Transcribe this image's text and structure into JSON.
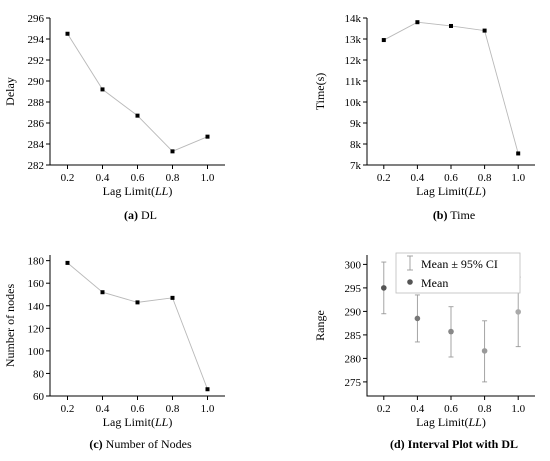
{
  "chart_data": [
    {
      "id": "a",
      "type": "line",
      "caption_bold": "(a)",
      "caption_text": " DL",
      "x": [
        0.2,
        0.4,
        0.6,
        0.8,
        1.0
      ],
      "xticks": [
        "0.2",
        "0.4",
        "0.6",
        "0.8",
        "1.0"
      ],
      "xlabel_prefix": "Lag Limit(",
      "xlabel_italic": "LL",
      "xlabel_suffix": ")",
      "ylabel": "Delay",
      "xlim": [
        0.1,
        1.1
      ],
      "ylim": [
        282,
        296
      ],
      "yticks": [
        282,
        284,
        286,
        288,
        290,
        292,
        294,
        296
      ],
      "ytick_labels": [
        "282",
        "284",
        "286",
        "288",
        "290",
        "292",
        "294",
        "296"
      ],
      "series": [
        {
          "values": [
            294.5,
            289.2,
            286.7,
            283.3,
            284.7
          ]
        }
      ]
    },
    {
      "id": "b",
      "type": "line",
      "caption_bold": "(b)",
      "caption_text": " Time",
      "x": [
        0.2,
        0.4,
        0.6,
        0.8,
        1.0
      ],
      "xticks": [
        "0.2",
        "0.4",
        "0.6",
        "0.8",
        "1.0"
      ],
      "xlabel_prefix": "Lag Limit(",
      "xlabel_italic": "LL",
      "xlabel_suffix": ")",
      "ylabel": "Time(s)",
      "xlim": [
        0.1,
        1.1
      ],
      "ylim": [
        7000,
        14000
      ],
      "yticks": [
        7000,
        8000,
        9000,
        10000,
        11000,
        12000,
        13000,
        14000
      ],
      "ytick_labels": [
        "7k",
        "8k",
        "9k",
        "10k",
        "11k",
        "12k",
        "13k",
        "14k"
      ],
      "series": [
        {
          "values": [
            12950,
            13800,
            13620,
            13400,
            7550
          ]
        }
      ]
    },
    {
      "id": "c",
      "type": "line",
      "caption_bold": "(c)",
      "caption_text": " Number of Nodes",
      "x": [
        0.2,
        0.4,
        0.6,
        0.8,
        1.0
      ],
      "xticks": [
        "0.2",
        "0.4",
        "0.6",
        "0.8",
        "1.0"
      ],
      "xlabel_prefix": "Lag Limit(",
      "xlabel_italic": "LL",
      "xlabel_suffix": ")",
      "ylabel": "Number of nodes",
      "xlim": [
        0.1,
        1.1
      ],
      "ylim": [
        60,
        185
      ],
      "yticks": [
        60,
        80,
        100,
        120,
        140,
        160,
        180
      ],
      "ytick_labels": [
        "60",
        "80",
        "100",
        "120",
        "140",
        "160",
        "180"
      ],
      "series": [
        {
          "values": [
            178,
            152,
            143,
            147,
            66
          ]
        }
      ]
    },
    {
      "id": "d",
      "type": "scatter",
      "caption_bold": "(d) Interval Plot with DL",
      "caption_text": "",
      "x": [
        0.2,
        0.4,
        0.6,
        0.8,
        1.0
      ],
      "xticks": [
        "0.2",
        "0.4",
        "0.6",
        "0.8",
        "1.0"
      ],
      "xlabel_prefix": "Lag Limit(",
      "xlabel_italic": "LL",
      "xlabel_suffix": ")",
      "ylabel": "Range",
      "xlim": [
        0.1,
        1.1
      ],
      "ylim": [
        272,
        302
      ],
      "yticks": [
        275,
        280,
        285,
        290,
        295,
        300
      ],
      "ytick_labels": [
        "275",
        "280",
        "285",
        "290",
        "295",
        "300"
      ],
      "legend": {
        "ci_label": "Mean ± 95% CI",
        "mean_label": "Mean",
        "placement": "top-right"
      },
      "series": [
        {
          "values": [
            295.0,
            288.5,
            285.7,
            281.6,
            289.9
          ],
          "ci_low": [
            289.5,
            283.5,
            280.3,
            275.0,
            282.5
          ],
          "ci_high": [
            300.5,
            293.5,
            291.0,
            288.0,
            297.3
          ],
          "colors": [
            "#555555",
            "#777777",
            "#888888",
            "#999999",
            "#aaaaaa"
          ]
        }
      ]
    }
  ]
}
